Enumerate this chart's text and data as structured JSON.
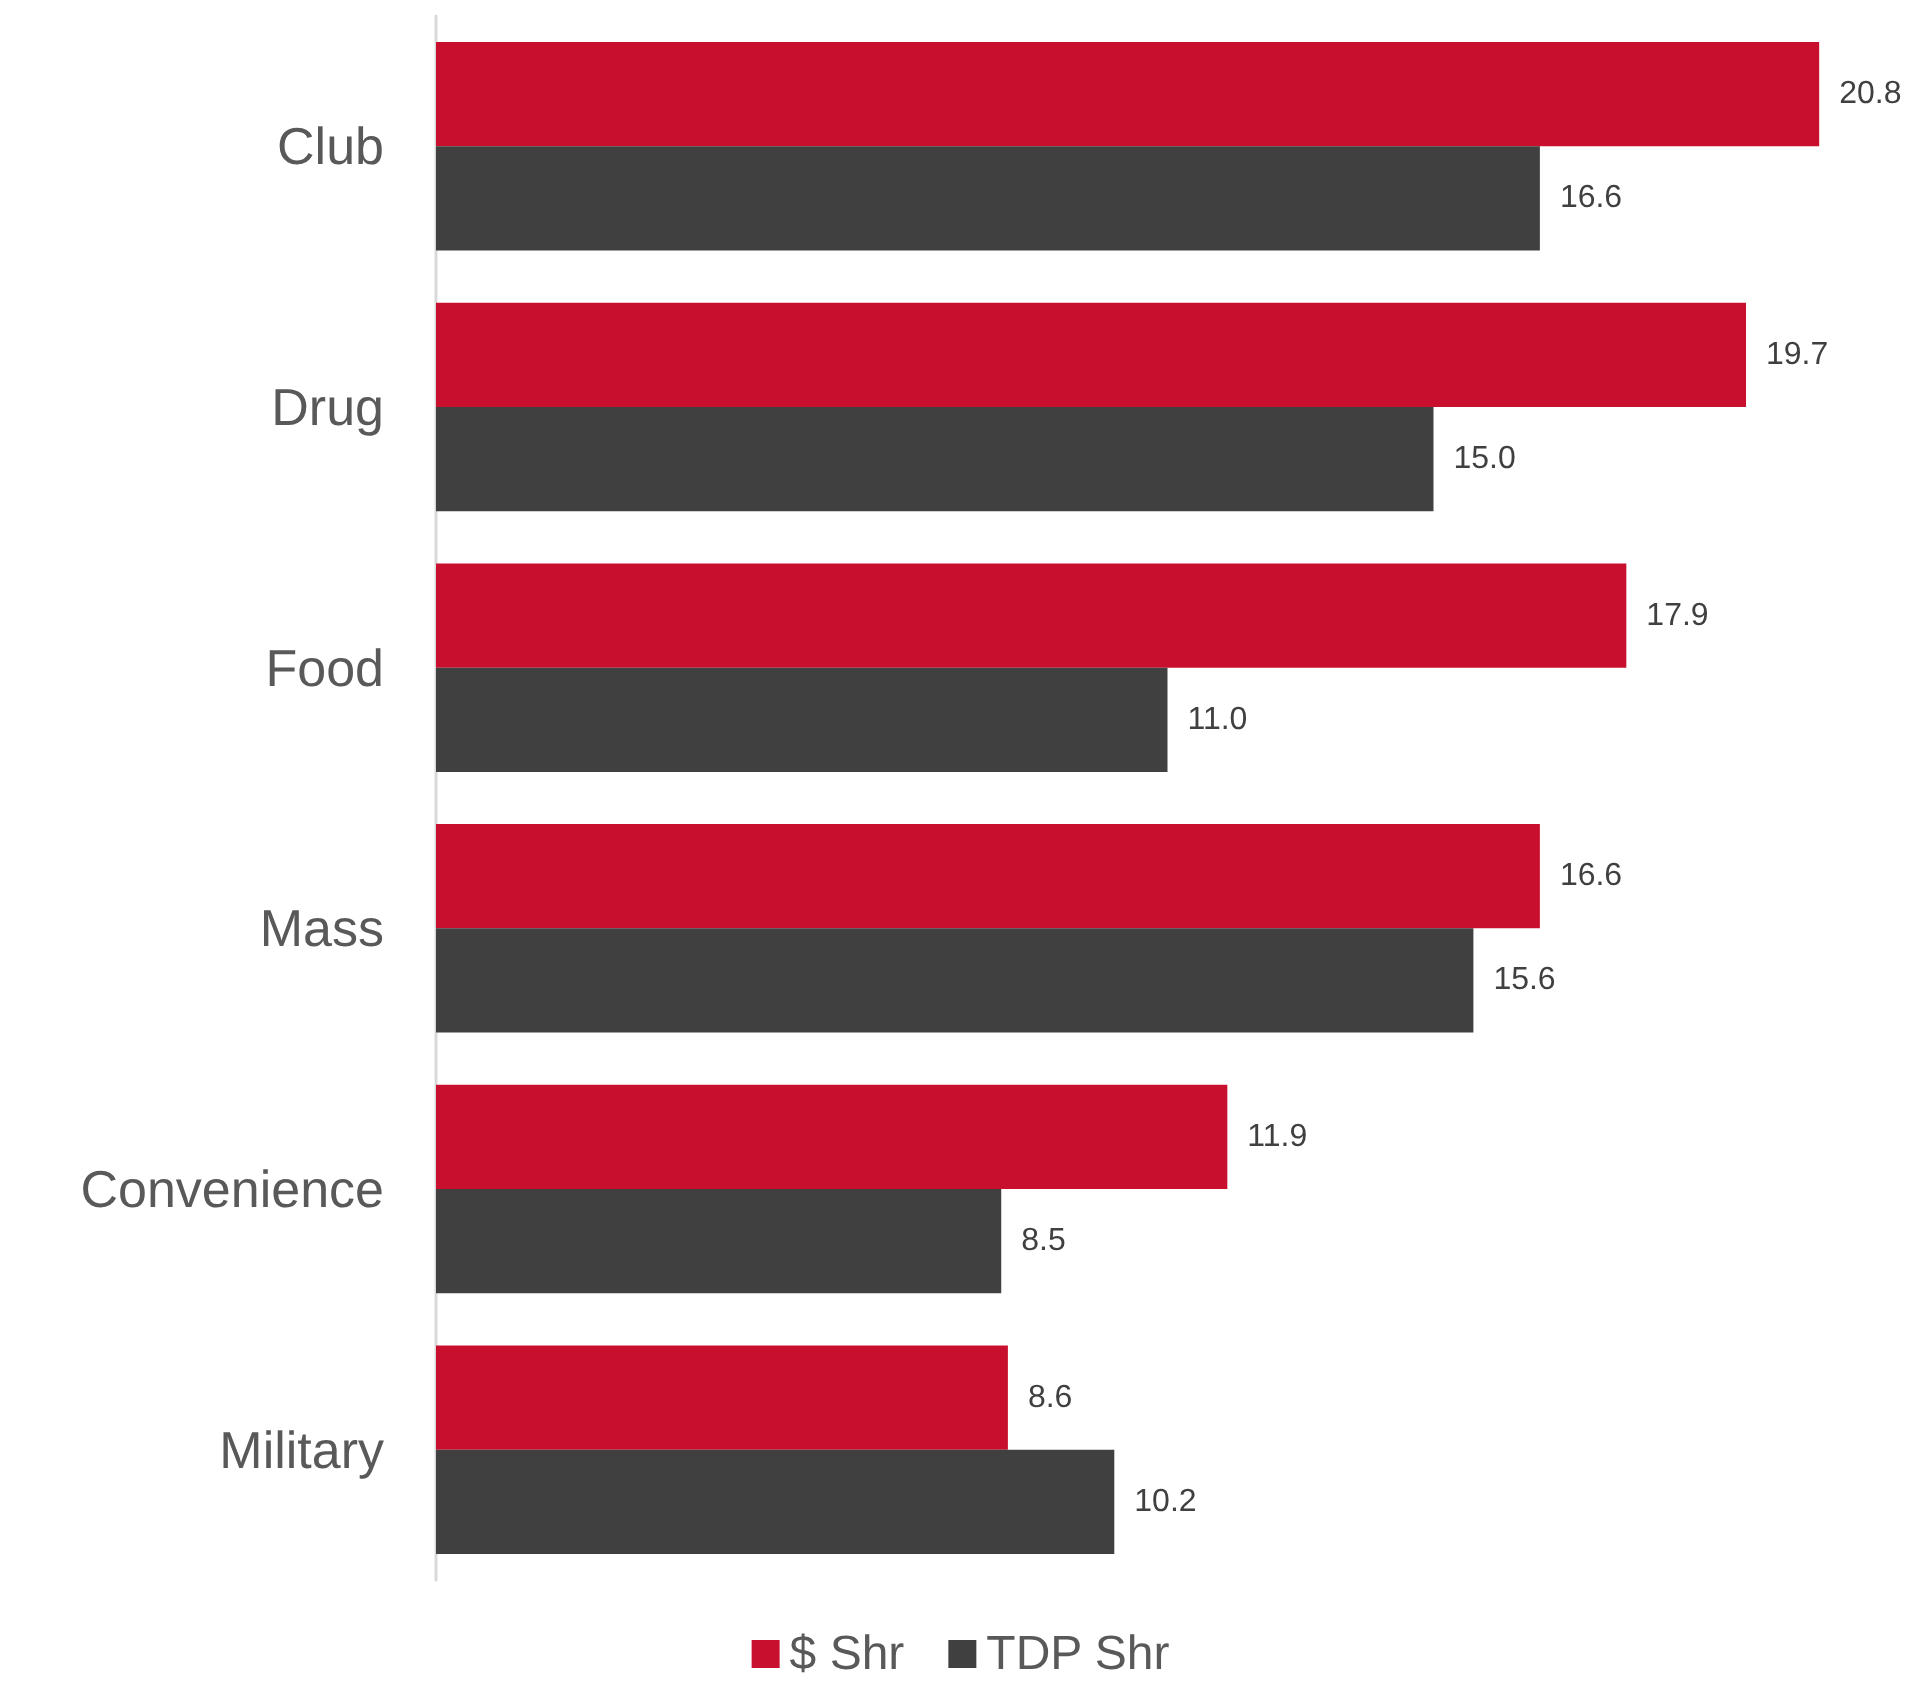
{
  "chart_data": {
    "type": "bar",
    "orientation": "horizontal",
    "categories": [
      "Club",
      "Drug",
      "Food",
      "Mass",
      "Convenience",
      "Military"
    ],
    "series": [
      {
        "name": "$ Shr",
        "color": "#c8102e",
        "values": [
          20.8,
          19.7,
          17.9,
          16.6,
          11.9,
          8.6
        ],
        "value_labels": [
          "20.8",
          "19.7",
          "17.9",
          "16.6",
          "11.9",
          "8.6"
        ]
      },
      {
        "name": "TDP Shr",
        "color": "#404040",
        "values": [
          16.6,
          15.0,
          11.0,
          15.6,
          8.5,
          10.2
        ],
        "value_labels": [
          "16.6",
          "15.0",
          "11.0",
          "15.6",
          "8.5",
          "10.2"
        ]
      }
    ],
    "tick_labels": "y",
    "legend": "bottom"
  }
}
